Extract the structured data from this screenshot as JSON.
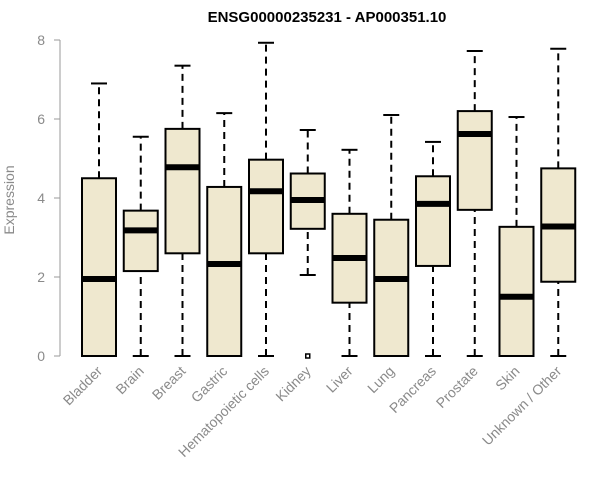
{
  "chart_data": {
    "type": "box",
    "title": "ENSG00000235231 - AP000351.10",
    "xlabel": "",
    "ylabel": "Expression",
    "ylim": [
      0,
      8
    ],
    "yticks": [
      0,
      2,
      4,
      6,
      8
    ],
    "box_color": "#efe8cf",
    "categories": [
      "Bladder",
      "Brain",
      "Breast",
      "Gastric",
      "Hematopoietic cells",
      "Kidney",
      "Liver",
      "Lung",
      "Pancreas",
      "Prostate",
      "Skin",
      "Unknown / Other"
    ],
    "boxes": [
      {
        "min": 0,
        "q1": 0,
        "median": 1.95,
        "q3": 4.5,
        "max": 6.9,
        "outliers": []
      },
      {
        "min": 0,
        "q1": 2.15,
        "median": 3.18,
        "q3": 3.68,
        "max": 5.55,
        "outliers": []
      },
      {
        "min": 0,
        "q1": 2.6,
        "median": 4.78,
        "q3": 5.75,
        "max": 7.35,
        "outliers": []
      },
      {
        "min": 0,
        "q1": 0,
        "median": 2.33,
        "q3": 4.28,
        "max": 6.15,
        "outliers": []
      },
      {
        "min": 0,
        "q1": 2.6,
        "median": 4.17,
        "q3": 4.97,
        "max": 7.93,
        "outliers": []
      },
      {
        "min": 2.05,
        "q1": 3.22,
        "median": 3.95,
        "q3": 4.62,
        "max": 5.72,
        "outliers": [
          0
        ]
      },
      {
        "min": 0,
        "q1": 1.35,
        "median": 2.48,
        "q3": 3.6,
        "max": 5.22,
        "outliers": []
      },
      {
        "min": 0,
        "q1": 0,
        "median": 1.95,
        "q3": 3.45,
        "max": 6.1,
        "outliers": []
      },
      {
        "min": 0,
        "q1": 2.28,
        "median": 3.85,
        "q3": 4.55,
        "max": 5.42,
        "outliers": []
      },
      {
        "min": 0,
        "q1": 3.7,
        "median": 5.62,
        "q3": 6.2,
        "max": 7.72,
        "outliers": []
      },
      {
        "min": 0,
        "q1": 0,
        "median": 1.5,
        "q3": 3.27,
        "max": 6.05,
        "outliers": []
      },
      {
        "min": 0,
        "q1": 1.88,
        "median": 3.28,
        "q3": 4.75,
        "max": 7.78,
        "outliers": []
      }
    ]
  }
}
